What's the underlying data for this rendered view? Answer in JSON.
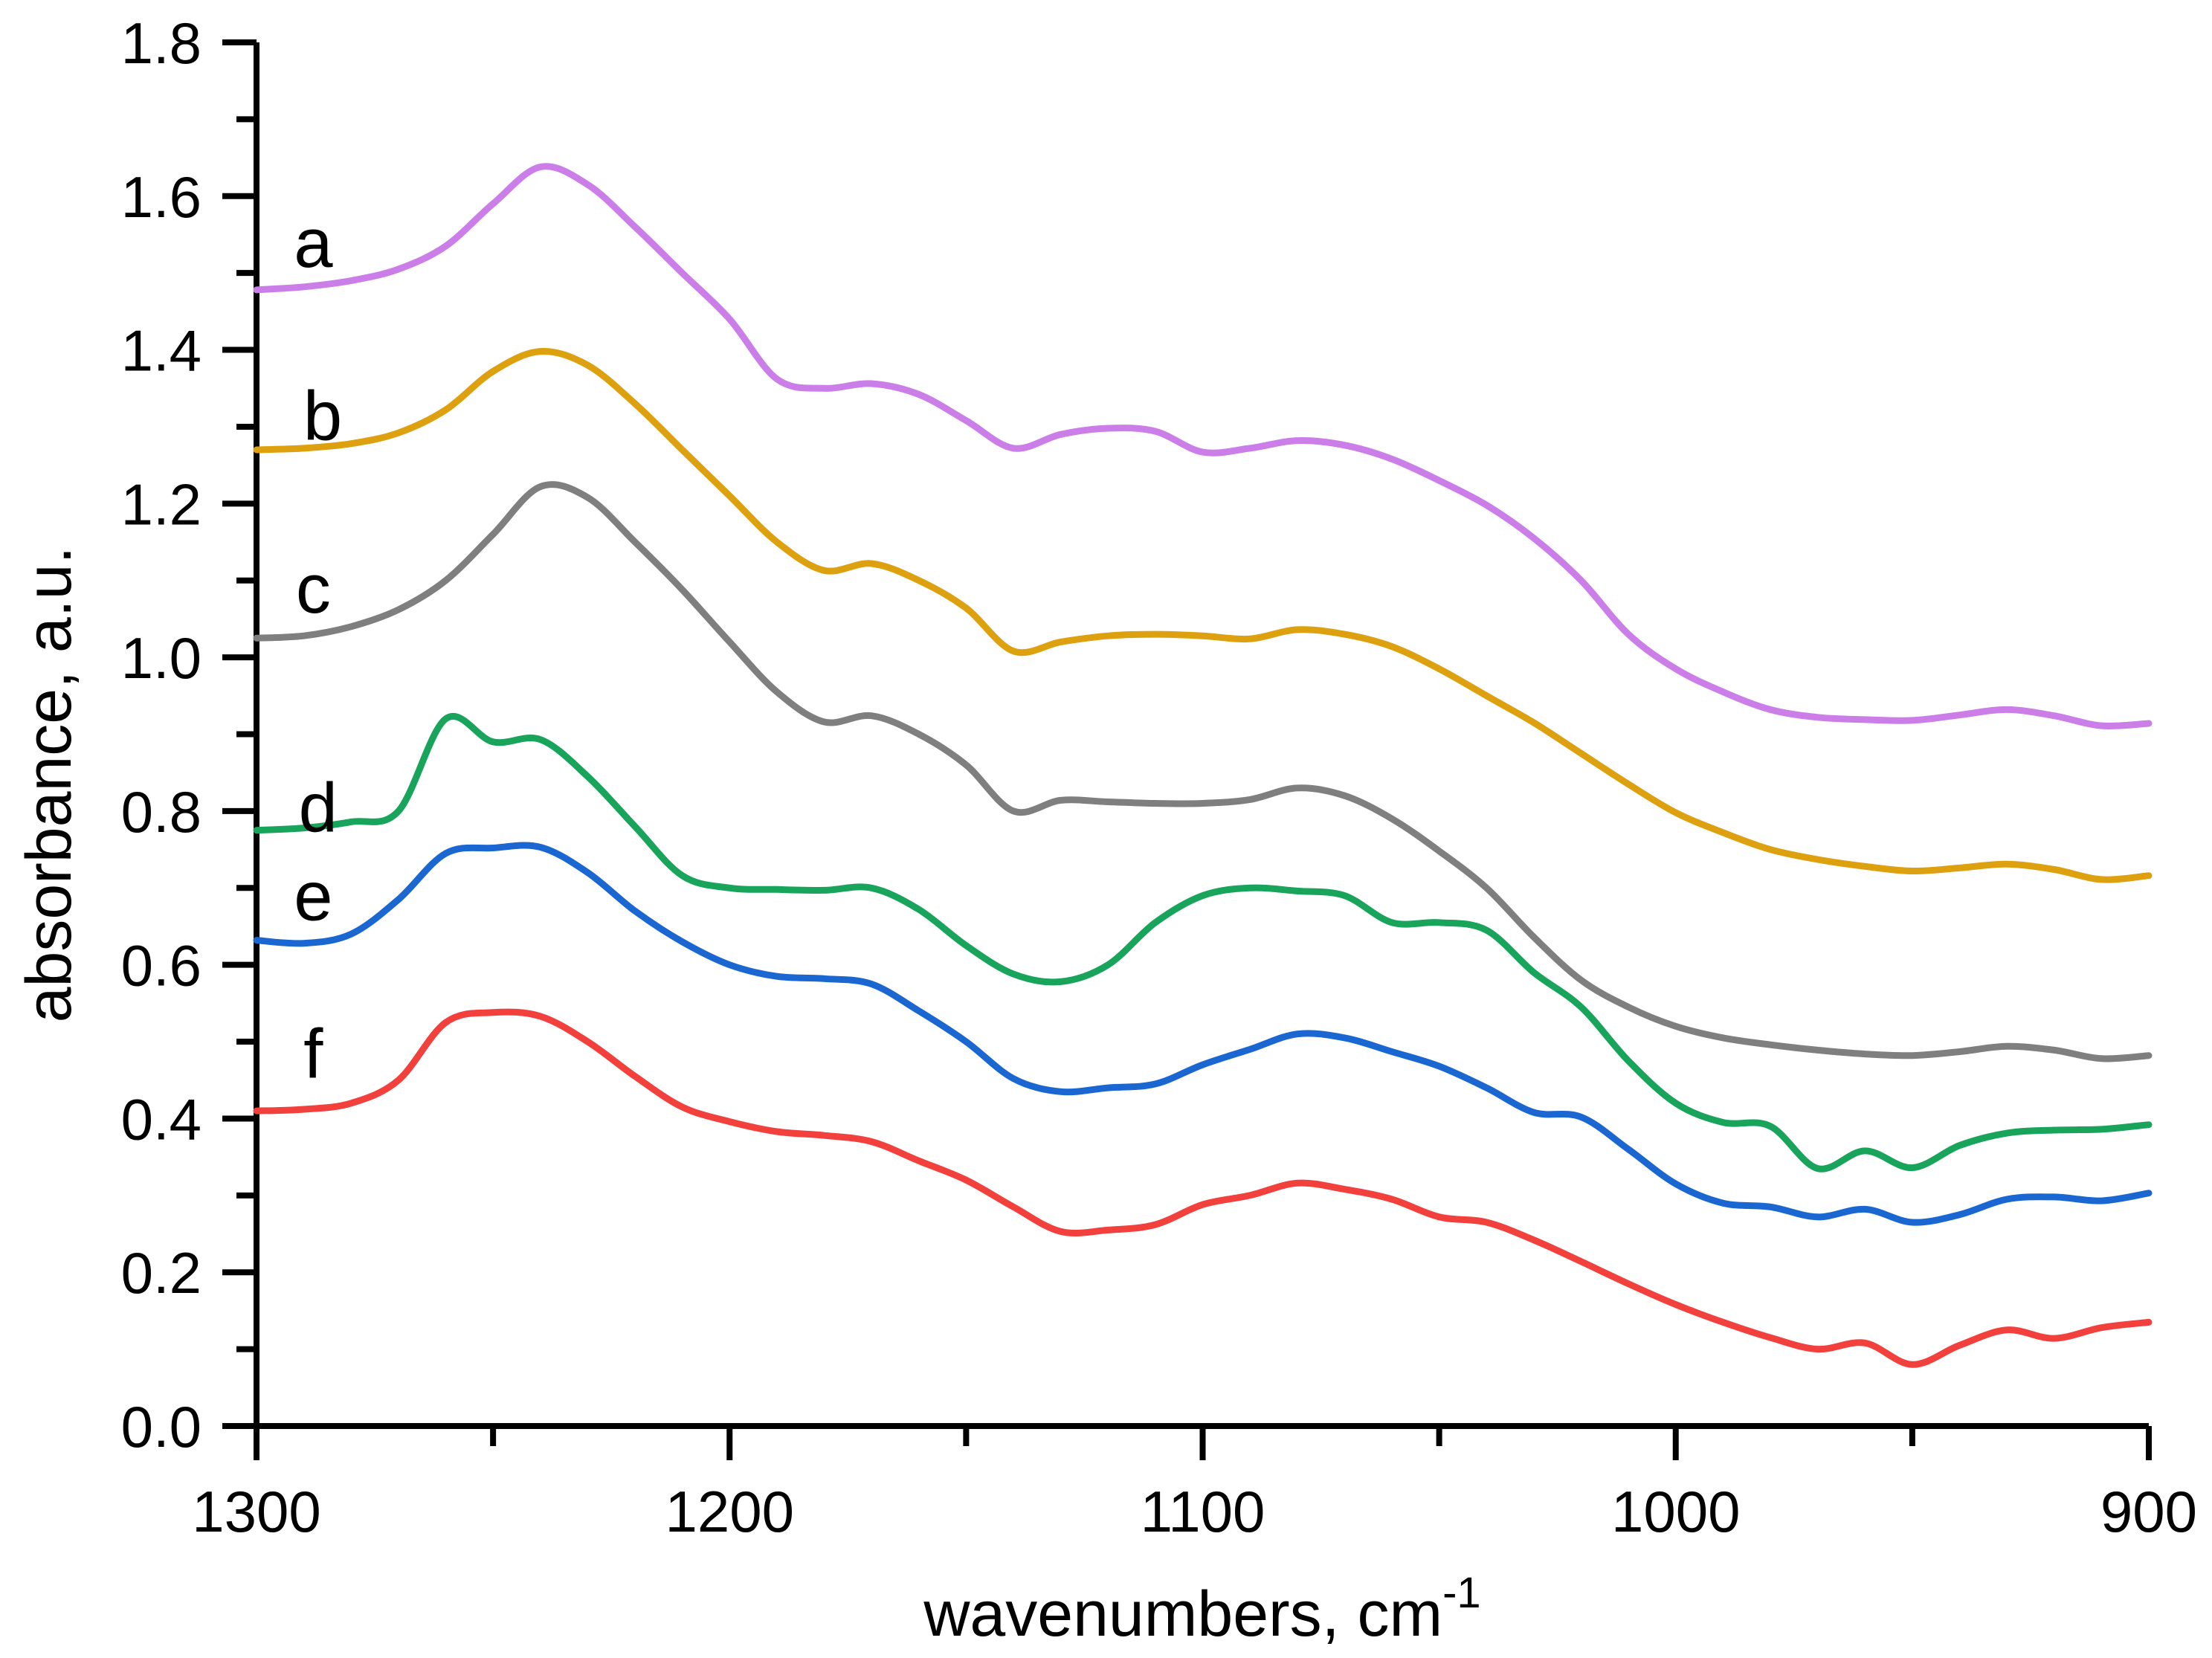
{
  "figure": {
    "xlabel": {
      "text": "wavenumbers, cm",
      "superscript": "-1"
    },
    "ylabel": "absorbance, a.u."
  },
  "chart_data": {
    "type": "line",
    "title": "",
    "xlabel": "wavenumbers, cm^-1",
    "ylabel": "absorbance, a.u.",
    "grid": false,
    "legend_position": "inline-letters-at-left-of-each-curve",
    "x_axis": {
      "min": 900,
      "max": 1300,
      "reversed": true,
      "major_ticks": [
        1300,
        1200,
        1100,
        1000,
        900
      ],
      "tick_labels": [
        "1300",
        "1200",
        "1100",
        "1000",
        "900"
      ],
      "minor_ticks": [
        1250,
        1150,
        1050,
        950
      ]
    },
    "y_axis": {
      "min": 0.0,
      "max": 1.8,
      "major_ticks": [
        0.0,
        0.2,
        0.4,
        0.6,
        0.8,
        1.0,
        1.2,
        1.4,
        1.6,
        1.8
      ],
      "tick_labels": [
        "0.0",
        "0.2",
        "0.4",
        "0.6",
        "0.8",
        "1.0",
        "1.2",
        "1.4",
        "1.6",
        "1.8"
      ],
      "minor_ticks": [
        0.1,
        0.3,
        0.5,
        0.7,
        0.9,
        1.1,
        1.3,
        1.5,
        1.7
      ]
    },
    "x": [
      1300,
      1290,
      1280,
      1270,
      1260,
      1250,
      1240,
      1230,
      1220,
      1210,
      1200,
      1190,
      1180,
      1170,
      1160,
      1150,
      1140,
      1130,
      1120,
      1110,
      1100,
      1090,
      1080,
      1070,
      1060,
      1050,
      1040,
      1030,
      1020,
      1010,
      1000,
      990,
      980,
      970,
      960,
      950,
      940,
      930,
      920,
      910,
      900
    ],
    "series": [
      {
        "name": "a",
        "label": "a",
        "color": "#cb7de8",
        "label_wn": 1288,
        "label_ab": 1.54,
        "values": [
          1.478,
          1.482,
          1.49,
          1.505,
          1.535,
          1.59,
          1.638,
          1.615,
          1.56,
          1.5,
          1.44,
          1.362,
          1.35,
          1.356,
          1.342,
          1.308,
          1.272,
          1.29,
          1.298,
          1.294,
          1.267,
          1.272,
          1.282,
          1.276,
          1.258,
          1.23,
          1.198,
          1.155,
          1.1,
          1.03,
          0.985,
          0.955,
          0.932,
          0.922,
          0.919,
          0.918,
          0.925,
          0.932,
          0.924,
          0.911,
          0.914
        ]
      },
      {
        "name": "b",
        "label": "b",
        "color": "#dda00f",
        "label_wn": 1286,
        "label_ab": 1.315,
        "values": [
          1.27,
          1.272,
          1.278,
          1.292,
          1.322,
          1.372,
          1.398,
          1.38,
          1.33,
          1.27,
          1.21,
          1.15,
          1.113,
          1.122,
          1.1,
          1.064,
          1.008,
          1.02,
          1.028,
          1.03,
          1.028,
          1.024,
          1.036,
          1.03,
          1.014,
          0.985,
          0.95,
          0.915,
          0.875,
          0.835,
          0.798,
          0.772,
          0.75,
          0.737,
          0.728,
          0.722,
          0.726,
          0.731,
          0.724,
          0.711,
          0.716
        ]
      },
      {
        "name": "c",
        "label": "c",
        "color": "#7f7f7f",
        "label_wn": 1288,
        "label_ab": 1.09,
        "values": [
          1.025,
          1.028,
          1.04,
          1.062,
          1.1,
          1.16,
          1.222,
          1.208,
          1.15,
          1.088,
          1.02,
          0.955,
          0.916,
          0.924,
          0.9,
          0.86,
          0.8,
          0.814,
          0.812,
          0.81,
          0.81,
          0.815,
          0.83,
          0.82,
          0.79,
          0.748,
          0.7,
          0.636,
          0.58,
          0.545,
          0.52,
          0.505,
          0.496,
          0.489,
          0.484,
          0.482,
          0.487,
          0.494,
          0.489,
          0.478,
          0.482
        ]
      },
      {
        "name": "d",
        "label": "d",
        "color": "#18a45a",
        "label_wn": 1287,
        "label_ab": 0.805,
        "values": [
          0.775,
          0.778,
          0.786,
          0.8,
          0.92,
          0.89,
          0.893,
          0.845,
          0.78,
          0.716,
          0.7,
          0.698,
          0.697,
          0.7,
          0.672,
          0.625,
          0.588,
          0.578,
          0.6,
          0.655,
          0.69,
          0.7,
          0.696,
          0.69,
          0.655,
          0.655,
          0.645,
          0.59,
          0.545,
          0.475,
          0.42,
          0.395,
          0.39,
          0.335,
          0.358,
          0.336,
          0.365,
          0.381,
          0.385,
          0.386,
          0.392
        ]
      },
      {
        "name": "e",
        "label": "e",
        "color": "#1a67d2",
        "label_wn": 1288,
        "label_ab": 0.69,
        "values": [
          0.632,
          0.628,
          0.64,
          0.685,
          0.745,
          0.752,
          0.753,
          0.72,
          0.67,
          0.63,
          0.6,
          0.585,
          0.582,
          0.575,
          0.54,
          0.5,
          0.452,
          0.435,
          0.44,
          0.445,
          0.47,
          0.49,
          0.51,
          0.505,
          0.487,
          0.468,
          0.44,
          0.408,
          0.402,
          0.36,
          0.315,
          0.29,
          0.285,
          0.272,
          0.282,
          0.265,
          0.275,
          0.295,
          0.298,
          0.293,
          0.303
        ]
      },
      {
        "name": "f",
        "label": "f",
        "color": "#f2403c",
        "label_wn": 1288,
        "label_ab": 0.485,
        "values": [
          0.41,
          0.412,
          0.42,
          0.45,
          0.525,
          0.538,
          0.533,
          0.5,
          0.455,
          0.415,
          0.396,
          0.383,
          0.378,
          0.37,
          0.345,
          0.32,
          0.285,
          0.253,
          0.255,
          0.262,
          0.288,
          0.3,
          0.316,
          0.308,
          0.295,
          0.272,
          0.265,
          0.242,
          0.214,
          0.185,
          0.158,
          0.135,
          0.115,
          0.1,
          0.108,
          0.08,
          0.105,
          0.125,
          0.114,
          0.128,
          0.135
        ]
      }
    ]
  }
}
